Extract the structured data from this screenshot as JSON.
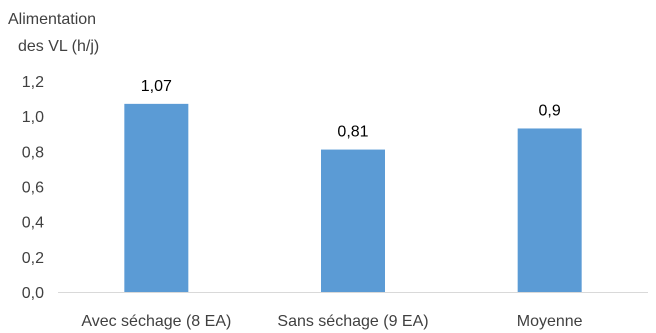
{
  "chart_data": {
    "type": "bar",
    "ylabel_lines": [
      "Alimentation",
      "des VL (h/j)"
    ],
    "xlabel": "",
    "categories": [
      "Avec séchage (8 EA)",
      "Sans séchage (9 EA)",
      "Moyenne"
    ],
    "values": [
      1.07,
      0.81,
      0.93
    ],
    "data_labels": [
      "1,07",
      "0,81",
      "0,9"
    ],
    "ylim": [
      0,
      1.2
    ],
    "yticks": [
      0,
      0.2,
      0.4,
      0.6,
      0.8,
      1.0,
      1.2
    ],
    "ytick_labels": [
      "0,0",
      "0,2",
      "0,4",
      "0,6",
      "0,8",
      "1,0",
      "1,2"
    ],
    "grid": false,
    "legend": "none",
    "bar_color": "#5B9BD5",
    "axis_color": "#D9D9D9"
  }
}
